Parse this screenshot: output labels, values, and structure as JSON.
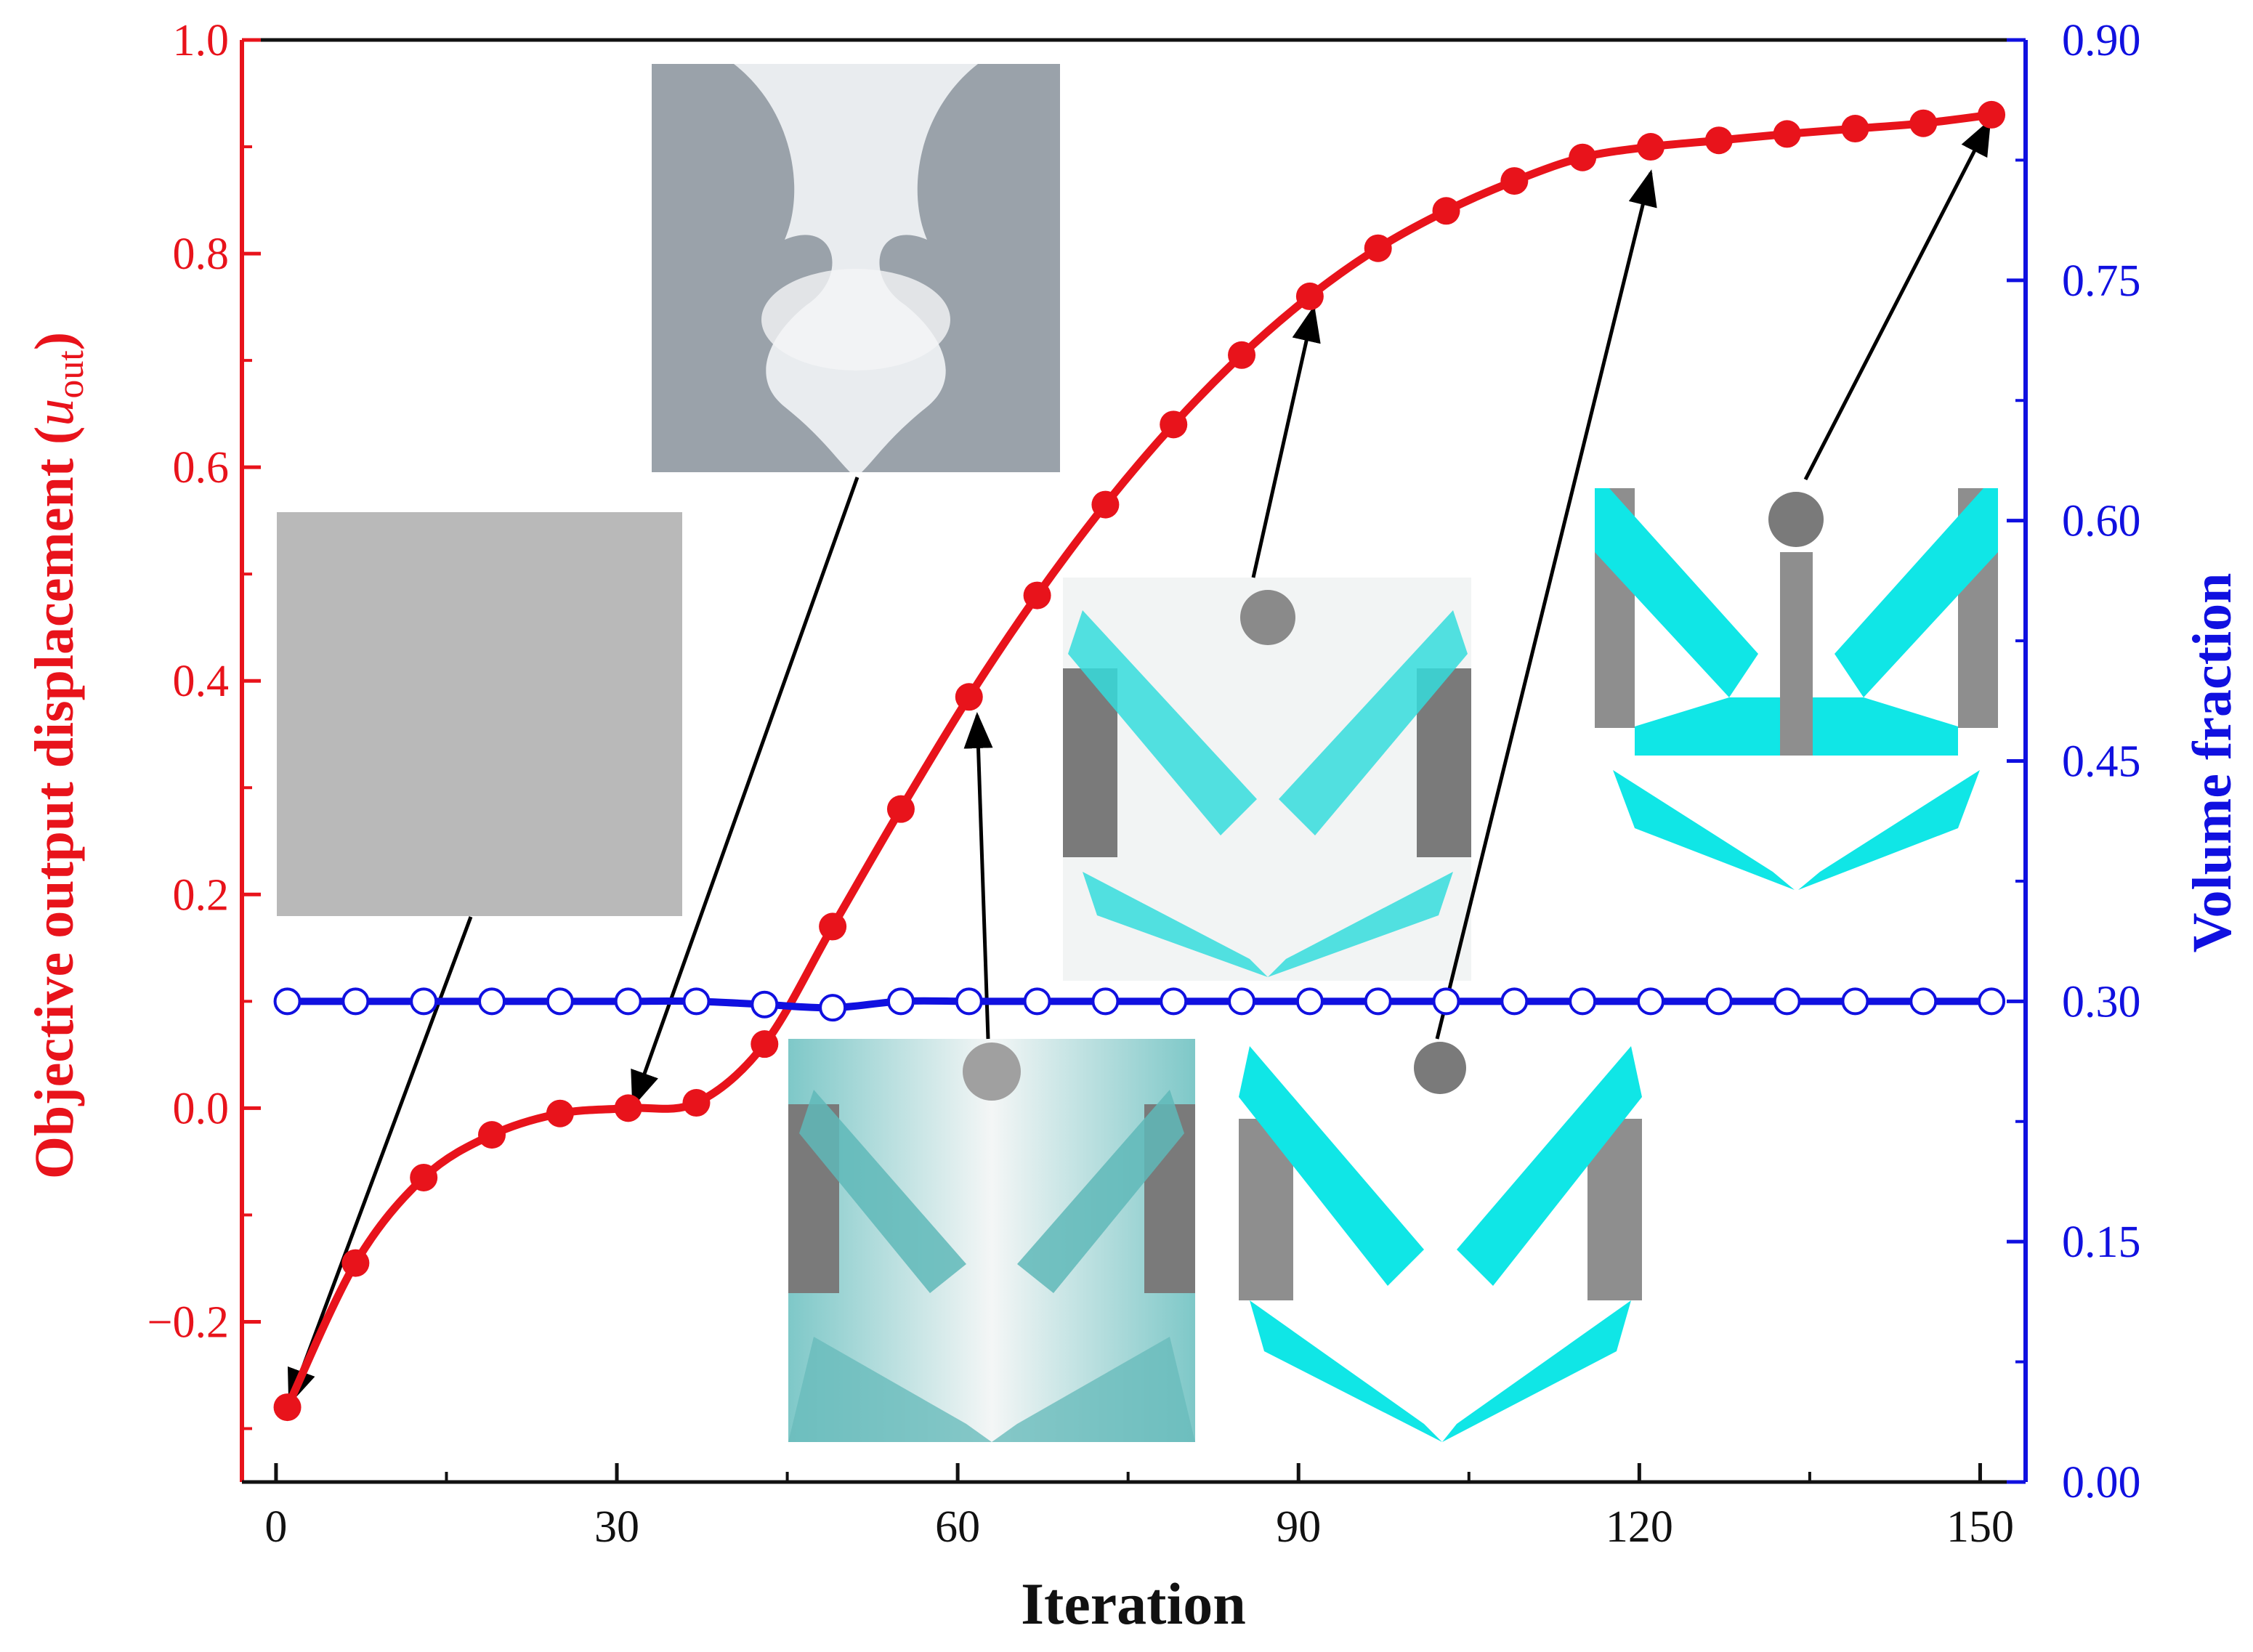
{
  "chart_data": {
    "type": "line",
    "title": "",
    "xlabel": "Iteration",
    "ylabel_left": "Objective output displacement (",
    "ylabel_left_symbol": "u",
    "ylabel_left_subscript": "out",
    "ylabel_left_close": ")",
    "ylabel_right": "Volume fraction",
    "xlim": [
      -3,
      154
    ],
    "ylim_left": [
      -0.35,
      1.0
    ],
    "ylim_right": [
      0.0,
      0.9
    ],
    "x_ticks": [
      0,
      30,
      60,
      90,
      120,
      150
    ],
    "x_tick_labels": [
      "0",
      "30",
      "60",
      "90",
      "120",
      "150"
    ],
    "y_left_ticks": [
      -0.2,
      0.0,
      0.2,
      0.4,
      0.6,
      0.8,
      1.0
    ],
    "y_left_tick_labels": [
      "−0.2",
      "0.0",
      "0.2",
      "0.4",
      "0.6",
      "0.8",
      "1.0"
    ],
    "y_right_ticks": [
      0.0,
      0.15,
      0.3,
      0.45,
      0.6,
      0.75,
      0.9
    ],
    "y_right_tick_labels": [
      "0.00",
      "0.15",
      "0.30",
      "0.45",
      "0.60",
      "0.75",
      "0.90"
    ],
    "series": [
      {
        "name": "Objective output displacement",
        "axis": "left",
        "color": "#e8131b",
        "marker": "filled-circle",
        "x": [
          1,
          7,
          13,
          19,
          25,
          31,
          37,
          43,
          49,
          55,
          61,
          67,
          73,
          79,
          85,
          91,
          97,
          103,
          109,
          115,
          121,
          127,
          133,
          139,
          145,
          151
        ],
        "y": [
          -0.28,
          -0.145,
          -0.065,
          -0.025,
          -0.005,
          0.0,
          0.005,
          0.06,
          0.17,
          0.28,
          0.385,
          0.48,
          0.565,
          0.64,
          0.705,
          0.76,
          0.805,
          0.84,
          0.868,
          0.89,
          0.9,
          0.906,
          0.912,
          0.917,
          0.922,
          0.93
        ]
      },
      {
        "name": "Volume fraction",
        "axis": "right",
        "color": "#1010e0",
        "marker": "open-circle",
        "x": [
          1,
          7,
          13,
          19,
          25,
          31,
          37,
          43,
          49,
          55,
          61,
          67,
          73,
          79,
          85,
          91,
          97,
          103,
          109,
          115,
          121,
          127,
          133,
          139,
          145,
          151
        ],
        "y": [
          0.3,
          0.3,
          0.3,
          0.3,
          0.3,
          0.3,
          0.3,
          0.298,
          0.296,
          0.3,
          0.3,
          0.3,
          0.3,
          0.3,
          0.3,
          0.3,
          0.3,
          0.3,
          0.3,
          0.3,
          0.3,
          0.3,
          0.3,
          0.3,
          0.3,
          0.3
        ]
      }
    ],
    "inset_snapshots": [
      {
        "name": "uniform-initial",
        "points_to": [
          1,
          -0.28
        ]
      },
      {
        "name": "grey-smooth",
        "points_to": [
          31,
          0.0
        ]
      },
      {
        "name": "teal-blend",
        "points_to": [
          61,
          0.385
        ]
      },
      {
        "name": "teal-emerging",
        "points_to": [
          91,
          0.76
        ]
      },
      {
        "name": "teal-crisp",
        "points_to": [
          121,
          0.9
        ]
      },
      {
        "name": "final-design",
        "points_to": [
          151,
          0.93
        ]
      }
    ],
    "colors": {
      "left_axis": "#e8131b",
      "right_axis": "#1010e0",
      "bottom_axis": "#111111",
      "grey_material": "#8e8e8e",
      "cyan_material": "#10e6e6",
      "arrow": "#000000"
    }
  }
}
